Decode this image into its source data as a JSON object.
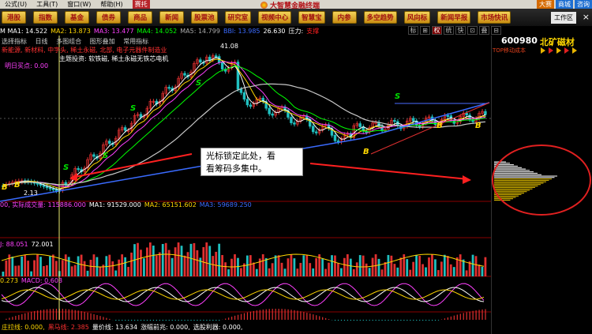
{
  "menu": {
    "items": [
      "公式(U)",
      "工具(T)",
      "窗口(W)",
      "帮助(H)"
    ],
    "tag": "赛托",
    "brand": "大智慧金融终端",
    "right": [
      "大赛",
      "商城",
      "咨询"
    ]
  },
  "nav": {
    "buttons": [
      "港股",
      "指数",
      "基金",
      "债券",
      "商品",
      "新闻",
      "股票池",
      "研究室",
      "视频中心",
      "智慧宝",
      "内参",
      "多空趋势",
      "风向标",
      "新闻早报",
      "市场快讯"
    ],
    "workspace": "工作区",
    "close": "×"
  },
  "infobar": {
    "items": [
      {
        "text": "M MA1: 14.522",
        "color": "#ffffff"
      },
      {
        "text": "MA2: 13.873",
        "color": "#ffd700"
      },
      {
        "text": "MA3: 13.477",
        "color": "#ff40ff"
      },
      {
        "text": "MA4: 14.052",
        "color": "#00ff00"
      },
      {
        "text": "MA5: 14.799",
        "color": "#aaaaaa"
      },
      {
        "text": "BBI: 13.985",
        "color": "#3a6bff"
      },
      {
        "text": "26.630",
        "color": "#ffffff"
      },
      {
        "text": "压力:",
        "color": "#ffffff"
      },
      {
        "text": "支撑",
        "color": "#ff2020"
      }
    ]
  },
  "toolbar": {
    "buttons": [
      "标",
      "⊞",
      "权",
      "统",
      "快",
      "⊡",
      "叠",
      "⊟"
    ],
    "active": 2
  },
  "subbar": {
    "items": [
      "选择指标",
      "日线",
      "多图组合",
      "图形叠加",
      "常用指标"
    ]
  },
  "concepts": {
    "line1": "新能源, 新材料, 中字头, 稀土永磁, 北部, 电子元器件制造业",
    "line2": "主题投资: 软铁磁, 稀土永磁无铁芯电机",
    "price_high": "41.08",
    "price_low": "2.13",
    "buy_label": "明日买点: 0.00"
  },
  "stock": {
    "code": "600980",
    "name": "北矿磁材",
    "sub": "TOP移动成本"
  },
  "callout": {
    "line1": "光标锁定此处，看",
    "line2": "看筹码多集中。"
  },
  "volume": {
    "items": [
      {
        "text": "00, 实际成交量: 115886.000",
        "color": "#ff40ff"
      },
      {
        "text": "MA1: 91529.000",
        "color": "#ffffff"
      },
      {
        "text": "MA2: 65151.602",
        "color": "#ffd700"
      },
      {
        "text": "MA3: 59689.250",
        "color": "#3a6bff"
      }
    ]
  },
  "kdj": {
    "items": [
      {
        "text": "J: 88.051",
        "color": "#ff40ff"
      },
      {
        "text": "72.001",
        "color": "#ffffff"
      }
    ]
  },
  "macd": {
    "items": [
      {
        "text": "0.273",
        "color": "#ffd700"
      },
      {
        "text": "MACD: 0.603",
        "color": "#ff40ff"
      }
    ]
  },
  "bottom": {
    "items": [
      {
        "text": "庄拉线: 0.000,",
        "color": "#ffd700"
      },
      {
        "text": "黑马线: 2.385",
        "color": "#ff3030"
      },
      {
        "text": "量价线: 13.634",
        "color": "#ffffff"
      },
      {
        "text": "涨幅前兆: 0.000,",
        "color": "#ffffff"
      },
      {
        "text": "选股利器: 0.000,",
        "color": "#ffffff"
      }
    ]
  },
  "colors": {
    "up": "#e03030",
    "down": "#20c0c0",
    "ma_white": "#ffffff",
    "ma_yellow": "#ffd700",
    "ma_pink": "#ff40ff",
    "ma_green": "#00ff00",
    "ma_blue": "#3a6bff",
    "callout_ring": "#e02020"
  }
}
